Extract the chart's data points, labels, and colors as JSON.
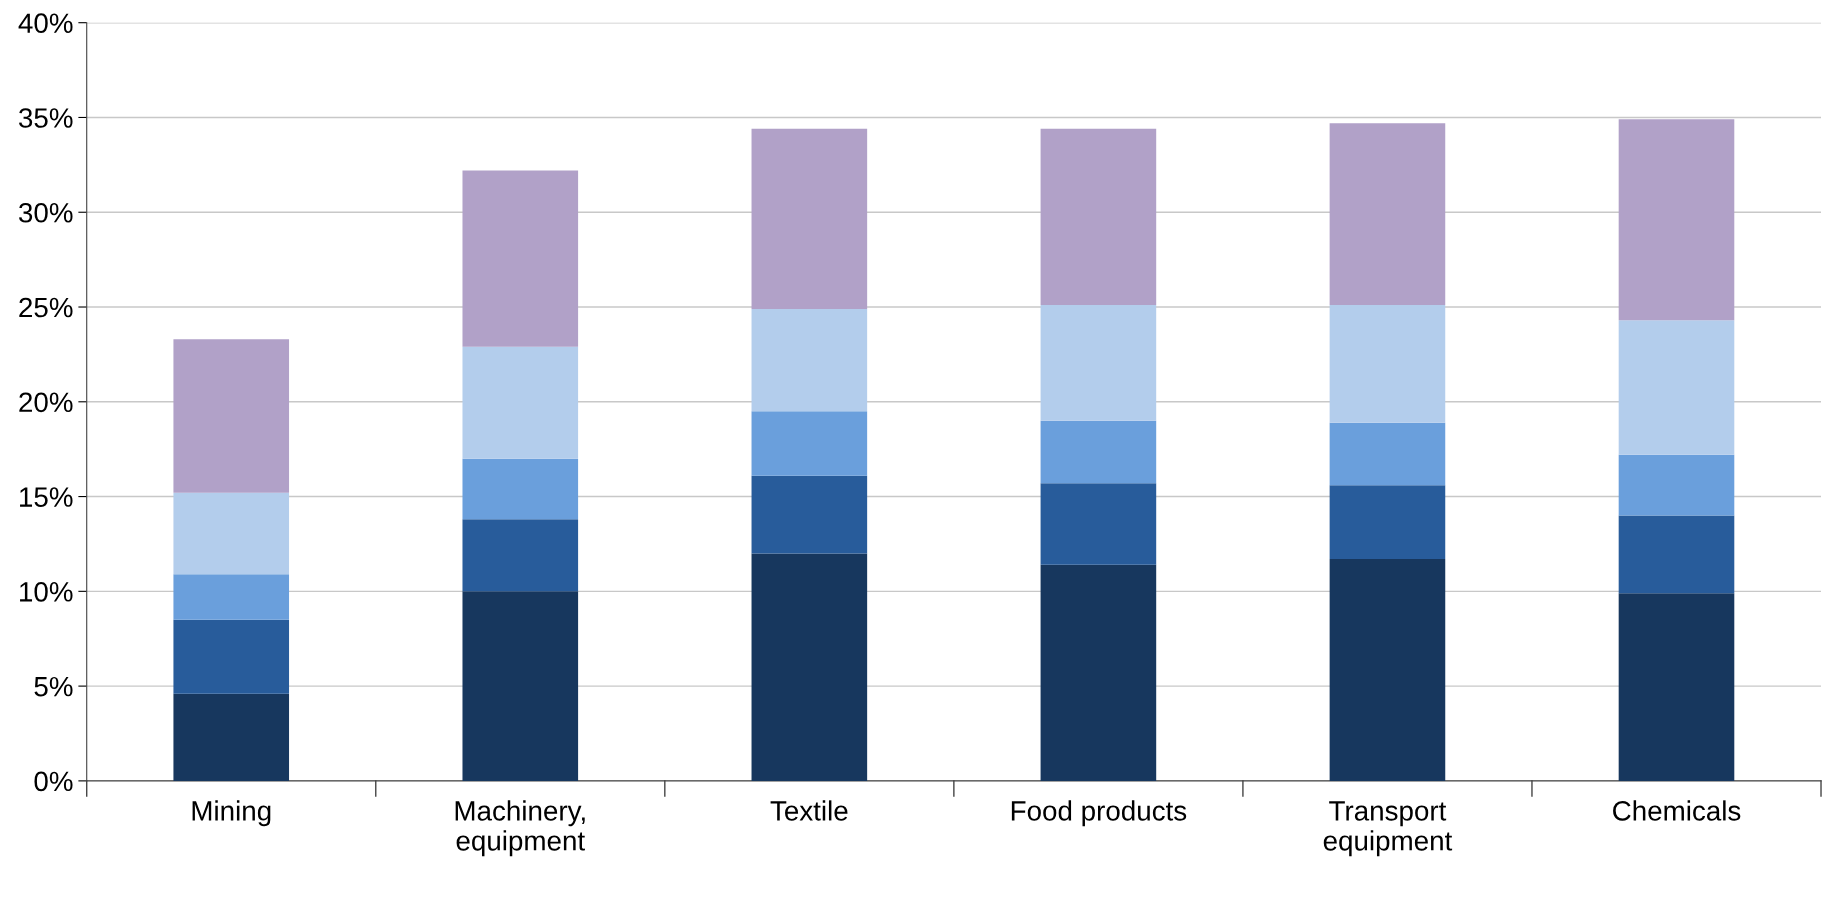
{
  "chart_data": {
    "type": "bar",
    "stacked": true,
    "categories": [
      "Mining",
      "Machinery,\nequipment",
      "Textile",
      "Food products",
      "Transport\nequipment",
      "Chemicals"
    ],
    "series": [
      {
        "color": "#17375e",
        "values": [
          4.6,
          10.0,
          12.0,
          11.4,
          11.7,
          9.9
        ]
      },
      {
        "color": "#285c9b",
        "values": [
          3.9,
          3.8,
          4.1,
          4.3,
          3.9,
          4.1
        ]
      },
      {
        "color": "#6a9fdc",
        "values": [
          2.4,
          3.2,
          3.4,
          3.3,
          3.3,
          3.2
        ]
      },
      {
        "color": "#b3cdec",
        "values": [
          4.3,
          5.9,
          5.4,
          6.1,
          6.2,
          7.1
        ]
      },
      {
        "color": "#b1a1c8",
        "values": [
          8.1,
          9.3,
          9.5,
          9.3,
          9.6,
          10.6
        ]
      }
    ],
    "ylim": [
      0,
      40
    ],
    "yticks": [
      {
        "value": 0,
        "label": "0%"
      },
      {
        "value": 5,
        "label": "5%"
      },
      {
        "value": 10,
        "label": "10%"
      },
      {
        "value": 15,
        "label": "15%"
      },
      {
        "value": 20,
        "label": "20%"
      },
      {
        "value": 25,
        "label": "25%"
      },
      {
        "value": 30,
        "label": "30%"
      },
      {
        "value": 35,
        "label": "35%"
      },
      {
        "value": 40,
        "label": "40%"
      }
    ],
    "grid": "y",
    "legend": false
  }
}
